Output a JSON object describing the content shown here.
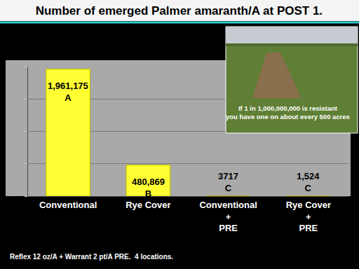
{
  "chart_data": {
    "type": "bar",
    "title": "Number of emerged Palmer amaranth/A at POST 1.",
    "categories": [
      "Conventional",
      "Rye Cover",
      "Conventional\n+\nPRE",
      "Rye Cover\n+\nPRE"
    ],
    "values": [
      1961175,
      480869,
      3717,
      1524
    ],
    "value_labels": [
      "1,961,175",
      "480,869",
      "3717",
      "1,524"
    ],
    "letters": [
      "A",
      "B",
      "C",
      "C"
    ],
    "color": "#ffff33",
    "ylim": [
      0,
      2000000
    ],
    "yticks": [
      0,
      500000,
      1000000,
      1500000,
      2000000
    ],
    "grid": true,
    "data_labels": true,
    "tick_labels": "x",
    "annotations": [
      "If 1 in 1,000,000,000 is resistant\nyou have one on about every 500 acres",
      "Reflex 12 oz/A + Warrant 2 pt/A PRE.  4 locations."
    ]
  }
}
